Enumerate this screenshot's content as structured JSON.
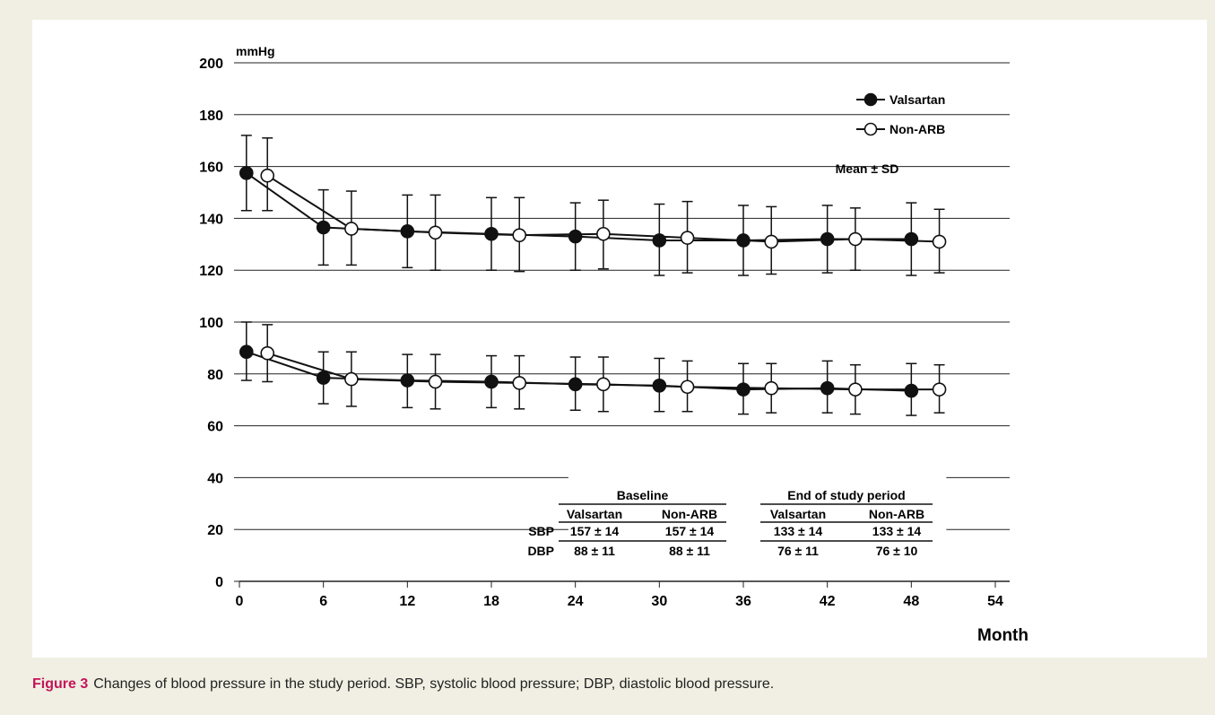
{
  "caption": {
    "label": "Figure 3",
    "text": "Changes of blood pressure in the study period. SBP, systolic blood pressure; DBP, diastolic blood pressure."
  },
  "chart_data": {
    "type": "line",
    "ylabel": "mmHg",
    "xlabel": "Month",
    "ylim": [
      0,
      200
    ],
    "xlim": [
      0,
      54
    ],
    "yticks": [
      "0",
      "20",
      "40",
      "60",
      "80",
      "100",
      "120",
      "140",
      "160",
      "180",
      "200"
    ],
    "xticks": [
      "0",
      "6",
      "12",
      "18",
      "24",
      "30",
      "36",
      "42",
      "48",
      "54"
    ],
    "grid": "horizontal",
    "legend_position": "top-right",
    "annotation": "Mean ± SD",
    "series": [
      {
        "name": "Valsartan",
        "measure": "SBP",
        "marker": "filled-circle",
        "x": [
          0.5,
          6,
          12,
          18,
          24,
          30,
          36,
          42,
          48
        ],
        "y": [
          157.5,
          136.5,
          135,
          134,
          133,
          131.5,
          131.5,
          132,
          132
        ],
        "sd_upper": [
          172,
          151,
          149,
          148,
          146,
          145.5,
          145,
          145,
          146
        ],
        "sd_lower": [
          143,
          122,
          121,
          120,
          120,
          118,
          118,
          119,
          118
        ]
      },
      {
        "name": "Non-ARB",
        "measure": "SBP",
        "marker": "open-circle",
        "x": [
          2,
          8,
          14,
          20,
          26,
          32,
          38,
          44,
          50
        ],
        "y": [
          156.5,
          136,
          134.5,
          133.5,
          134,
          132.5,
          131,
          132,
          131
        ],
        "sd_upper": [
          171,
          150.5,
          149,
          148,
          147,
          146.5,
          144.5,
          144,
          143.5
        ],
        "sd_lower": [
          143,
          122,
          120,
          119.5,
          120.5,
          119,
          118.5,
          120,
          119
        ]
      },
      {
        "name": "Valsartan",
        "measure": "DBP",
        "marker": "filled-circle",
        "x": [
          0.5,
          6,
          12,
          18,
          24,
          30,
          36,
          42,
          48
        ],
        "y": [
          88.5,
          78.5,
          77.5,
          77,
          76,
          75.5,
          74,
          74.5,
          73.5
        ],
        "sd_upper": [
          100,
          88.5,
          87.5,
          87,
          86.5,
          86,
          84,
          85,
          84
        ],
        "sd_lower": [
          77.5,
          68.5,
          67,
          67,
          66,
          65.5,
          64.5,
          65,
          64
        ]
      },
      {
        "name": "Non-ARB",
        "measure": "DBP",
        "marker": "open-circle",
        "x": [
          2,
          8,
          14,
          20,
          26,
          32,
          38,
          44,
          50
        ],
        "y": [
          88,
          78,
          77,
          76.5,
          76,
          75,
          74.5,
          74,
          74
        ],
        "sd_upper": [
          99,
          88.5,
          87.5,
          87,
          86.5,
          85,
          84,
          83.5,
          83.5
        ],
        "sd_lower": [
          77,
          67.5,
          66.5,
          66.5,
          65.5,
          65.5,
          65,
          64.5,
          65
        ]
      }
    ],
    "legend": [
      {
        "name": "Valsartan",
        "marker": "filled-circle"
      },
      {
        "name": "Non-ARB",
        "marker": "open-circle"
      }
    ],
    "inset_table": {
      "groups": [
        "Baseline",
        "End of study period"
      ],
      "columns": [
        "Valsartan",
        "Non-ARB",
        "Valsartan",
        "Non-ARB"
      ],
      "rows": [
        {
          "label": "SBP",
          "values": [
            "157 ± 14",
            "157 ± 14",
            "133 ± 14",
            "133 ± 14"
          ]
        },
        {
          "label": "DBP",
          "values": [
            "88 ± 11",
            "88 ± 11",
            "76 ± 11",
            "76 ± 10"
          ]
        }
      ]
    }
  }
}
